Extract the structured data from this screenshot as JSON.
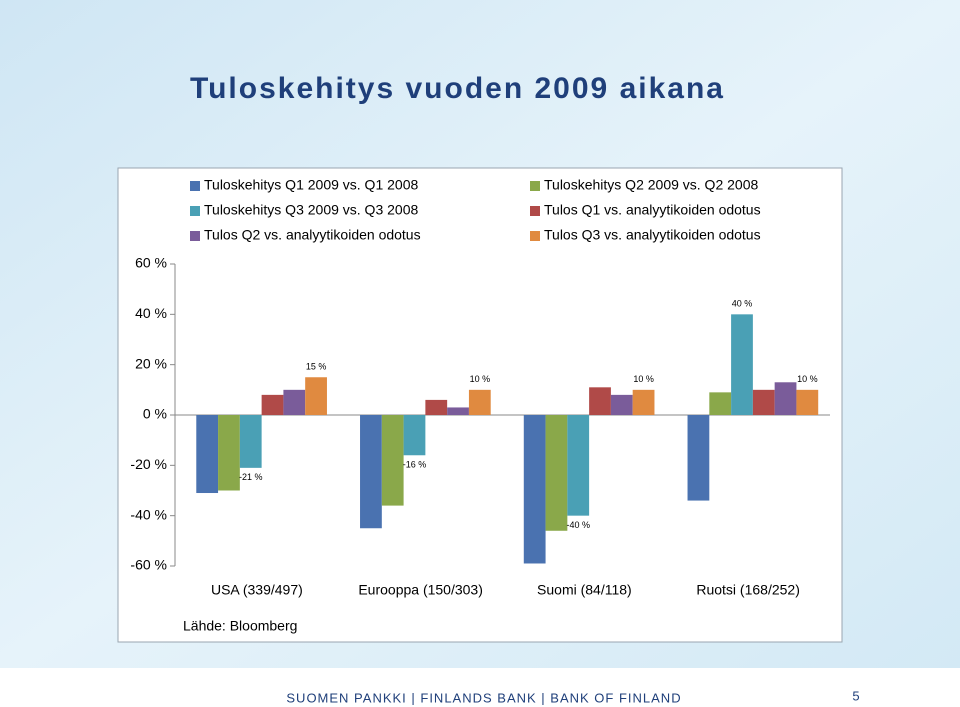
{
  "chart_data": {
    "type": "bar",
    "title": "Tuloskehitys vuoden 2009 aikana",
    "source": "Lähde: Bloomberg",
    "categories": [
      "USA (339/497)",
      "Eurooppa (150/303)",
      "Suomi (84/118)",
      "Ruotsi (168/252)"
    ],
    "series": [
      {
        "name": "Tuloskehitys Q1 2009 vs. Q1 2008",
        "color": "#4a72b0",
        "values": [
          -31,
          -45,
          -59,
          -34
        ]
      },
      {
        "name": "Tuloskehitys Q2 2009 vs. Q2 2008",
        "color": "#8aa84a",
        "values": [
          -30,
          -36,
          -46,
          9
        ]
      },
      {
        "name": "Tuloskehitys Q3 2009 vs. Q3 2008",
        "color": "#4aa0b5",
        "values": [
          -21,
          -16,
          -40,
          40
        ],
        "value_labels": [
          "-21 %",
          "-16 %",
          "-40 %",
          "40 %"
        ]
      },
      {
        "name": "Tulos Q1 vs. analyytikoiden odotus",
        "color": "#b04a48",
        "values": [
          8,
          6,
          11,
          10
        ]
      },
      {
        "name": "Tulos Q2 vs. analyytikoiden odotus",
        "color": "#7a5c9a",
        "values": [
          10,
          3,
          8,
          13
        ]
      },
      {
        "name": "Tulos Q3 vs. analyytikoiden odotus",
        "color": "#e08a40",
        "values": [
          15,
          10,
          10,
          10
        ],
        "value_labels": [
          "15 %",
          "10 %",
          "10 %",
          "10 %"
        ]
      }
    ],
    "ylim": [
      -60,
      60
    ],
    "yticks": [
      {
        "value": -60,
        "label": "-60 %"
      },
      {
        "value": -40,
        "label": "-40 %"
      },
      {
        "value": -20,
        "label": "-20 %"
      },
      {
        "value": 0,
        "label": "0 %"
      },
      {
        "value": 20,
        "label": "20 %"
      },
      {
        "value": 40,
        "label": "40 %"
      },
      {
        "value": 60,
        "label": "60 %"
      }
    ],
    "grid": false,
    "legend": "top"
  },
  "footer": "SUOMEN PANKKI | FINLANDS BANK | BANK OF FINLAND",
  "page_number": "5"
}
